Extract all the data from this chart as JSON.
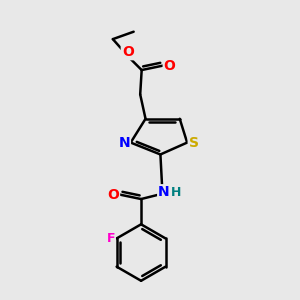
{
  "bg_color": "#e8e8e8",
  "bond_color": "#000000",
  "bond_width": 1.8,
  "atom_colors": {
    "O": "#ff0000",
    "N": "#0000ff",
    "S": "#ccaa00",
    "F": "#ff00cc",
    "H": "#008080",
    "C": "#000000"
  },
  "font_size": 10,
  "fig_size": [
    3.0,
    3.0
  ],
  "dpi": 100
}
